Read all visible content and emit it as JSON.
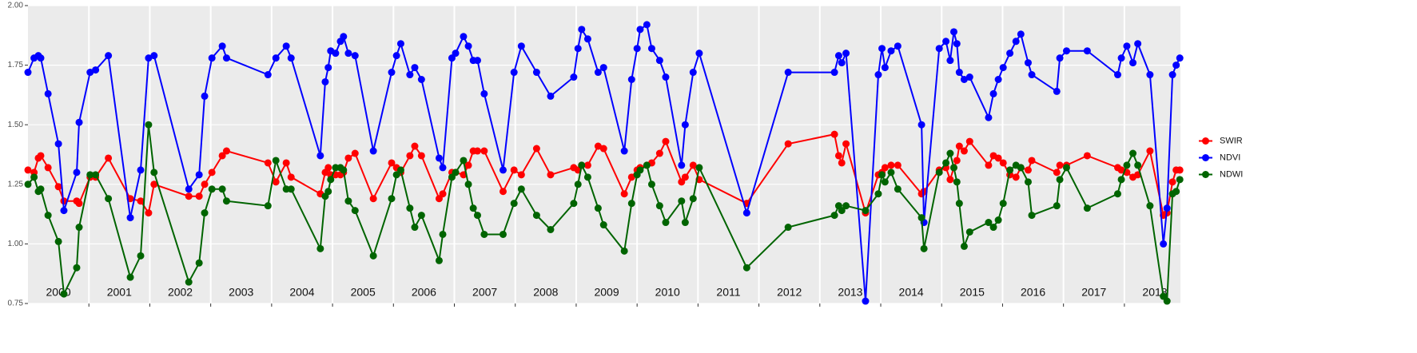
{
  "chart_data": {
    "type": "line",
    "x": [
      2000.0,
      2000.1,
      2000.17,
      2000.21,
      2000.33,
      2000.5,
      2000.59,
      2000.8,
      2000.84,
      2001.02,
      2001.11,
      2001.32,
      2001.68,
      2001.85,
      2001.98,
      2002.07,
      2002.64,
      2002.81,
      2002.9,
      2003.02,
      2003.19,
      2003.26,
      2003.94,
      2004.07,
      2004.24,
      2004.32,
      2004.8,
      2004.88,
      2004.93,
      2004.97,
      2005.05,
      2005.13,
      2005.18,
      2005.26,
      2005.37,
      2005.67,
      2005.97,
      2006.05,
      2006.12,
      2006.27,
      2006.35,
      2006.46,
      2006.75,
      2006.81,
      2006.96,
      2007.02,
      2007.15,
      2007.23,
      2007.31,
      2007.38,
      2007.49,
      2007.8,
      2007.98,
      2008.1,
      2008.35,
      2008.58,
      2008.96,
      2009.03,
      2009.09,
      2009.19,
      2009.36,
      2009.45,
      2009.79,
      2009.91,
      2010.0,
      2010.05,
      2010.16,
      2010.24,
      2010.37,
      2010.47,
      2010.73,
      2010.79,
      2010.92,
      2011.02,
      2011.8,
      2012.48,
      2013.24,
      2013.31,
      2013.36,
      2013.43,
      2013.75,
      2013.96,
      2014.02,
      2014.07,
      2014.17,
      2014.28,
      2014.67,
      2014.71,
      2014.96,
      2015.07,
      2015.14,
      2015.2,
      2015.25,
      2015.29,
      2015.37,
      2015.46,
      2015.77,
      2015.85,
      2015.93,
      2016.01,
      2016.12,
      2016.22,
      2016.3,
      2016.42,
      2016.48,
      2016.89,
      2016.94,
      2017.05,
      2017.39,
      2017.89,
      2017.95,
      2018.04,
      2018.14,
      2018.22,
      2018.42,
      2018.64,
      2018.7,
      2018.79,
      2018.85,
      2018.91
    ],
    "series": [
      {
        "name": "SWIR",
        "color": "#ff0000",
        "values": [
          1.31,
          1.3,
          1.36,
          1.37,
          1.32,
          1.24,
          1.18,
          1.18,
          1.17,
          1.28,
          1.28,
          1.36,
          1.19,
          1.18,
          1.13,
          1.25,
          1.2,
          1.2,
          1.25,
          1.3,
          1.37,
          1.39,
          1.34,
          1.26,
          1.34,
          1.28,
          1.21,
          1.3,
          1.32,
          1.29,
          1.29,
          1.29,
          1.3,
          1.36,
          1.38,
          1.19,
          1.34,
          1.32,
          1.3,
          1.37,
          1.41,
          1.37,
          1.19,
          1.21,
          1.3,
          1.3,
          1.29,
          1.33,
          1.39,
          1.39,
          1.39,
          1.22,
          1.31,
          1.29,
          1.4,
          1.29,
          1.32,
          1.31,
          1.33,
          1.33,
          1.41,
          1.4,
          1.21,
          1.28,
          1.31,
          1.32,
          1.33,
          1.34,
          1.38,
          1.43,
          1.26,
          1.28,
          1.33,
          1.27,
          1.17,
          1.42,
          1.46,
          1.37,
          1.34,
          1.42,
          1.13,
          1.29,
          1.3,
          1.32,
          1.33,
          1.33,
          1.21,
          1.22,
          1.31,
          1.32,
          1.27,
          1.32,
          1.35,
          1.41,
          1.39,
          1.43,
          1.33,
          1.37,
          1.36,
          1.34,
          1.29,
          1.28,
          1.32,
          1.31,
          1.35,
          1.3,
          1.33,
          1.33,
          1.37,
          1.32,
          1.31,
          1.3,
          1.28,
          1.29,
          1.39,
          1.12,
          1.13,
          1.26,
          1.31,
          1.31
        ]
      },
      {
        "name": "NDVI",
        "color": "#0000ff",
        "values": [
          1.72,
          1.78,
          1.79,
          1.78,
          1.63,
          1.42,
          1.14,
          1.3,
          1.51,
          1.72,
          1.73,
          1.79,
          1.11,
          1.31,
          1.78,
          1.79,
          1.23,
          1.29,
          1.62,
          1.78,
          1.83,
          1.78,
          1.71,
          1.78,
          1.83,
          1.78,
          1.37,
          1.68,
          1.74,
          1.81,
          1.8,
          1.85,
          1.87,
          1.8,
          1.79,
          1.39,
          1.72,
          1.79,
          1.84,
          1.71,
          1.74,
          1.69,
          1.36,
          1.32,
          1.78,
          1.8,
          1.87,
          1.83,
          1.77,
          1.77,
          1.63,
          1.31,
          1.72,
          1.83,
          1.72,
          1.62,
          1.7,
          1.82,
          1.9,
          1.86,
          1.72,
          1.74,
          1.39,
          1.69,
          1.82,
          1.9,
          1.92,
          1.82,
          1.77,
          1.7,
          1.33,
          1.5,
          1.72,
          1.8,
          1.13,
          1.72,
          1.72,
          1.79,
          1.76,
          1.8,
          0.76,
          1.71,
          1.82,
          1.74,
          1.81,
          1.83,
          1.5,
          1.09,
          1.82,
          1.85,
          1.77,
          1.89,
          1.84,
          1.72,
          1.69,
          1.7,
          1.53,
          1.63,
          1.69,
          1.74,
          1.8,
          1.85,
          1.88,
          1.76,
          1.71,
          1.64,
          1.78,
          1.81,
          1.81,
          1.71,
          1.78,
          1.83,
          1.76,
          1.84,
          1.71,
          1.0,
          1.15,
          1.71,
          1.75,
          1.78
        ]
      },
      {
        "name": "NDWI",
        "color": "#006400",
        "values": [
          1.25,
          1.28,
          1.22,
          1.23,
          1.12,
          1.01,
          0.79,
          0.9,
          1.07,
          1.29,
          1.29,
          1.19,
          0.86,
          0.95,
          1.5,
          1.3,
          0.84,
          0.92,
          1.13,
          1.23,
          1.23,
          1.18,
          1.16,
          1.35,
          1.23,
          1.23,
          0.98,
          1.2,
          1.22,
          1.27,
          1.32,
          1.32,
          1.31,
          1.18,
          1.14,
          0.95,
          1.19,
          1.29,
          1.31,
          1.15,
          1.07,
          1.12,
          0.93,
          1.04,
          1.28,
          1.3,
          1.35,
          1.25,
          1.15,
          1.12,
          1.04,
          1.04,
          1.17,
          1.23,
          1.12,
          1.06,
          1.17,
          1.25,
          1.33,
          1.28,
          1.15,
          1.08,
          0.97,
          1.17,
          1.29,
          1.31,
          1.33,
          1.25,
          1.16,
          1.09,
          1.18,
          1.09,
          1.19,
          1.32,
          0.9,
          1.07,
          1.12,
          1.16,
          1.14,
          1.16,
          1.14,
          1.21,
          1.29,
          1.26,
          1.3,
          1.23,
          1.11,
          0.98,
          1.3,
          1.34,
          1.38,
          1.32,
          1.26,
          1.17,
          0.99,
          1.05,
          1.09,
          1.07,
          1.1,
          1.17,
          1.31,
          1.33,
          1.32,
          1.26,
          1.12,
          1.16,
          1.27,
          1.32,
          1.15,
          1.21,
          1.27,
          1.33,
          1.38,
          1.33,
          1.16,
          0.78,
          0.76,
          1.21,
          1.22,
          1.27
        ]
      }
    ],
    "xlim": [
      2000,
      2018.92
    ],
    "xticks": [
      {
        "value": 2000.5,
        "label": "2000"
      },
      {
        "value": 2001.5,
        "label": "2001"
      },
      {
        "value": 2002.5,
        "label": "2002"
      },
      {
        "value": 2003.5,
        "label": "2003"
      },
      {
        "value": 2004.5,
        "label": "2004"
      },
      {
        "value": 2005.5,
        "label": "2005"
      },
      {
        "value": 2006.5,
        "label": "2006"
      },
      {
        "value": 2007.5,
        "label": "2007"
      },
      {
        "value": 2008.5,
        "label": "2008"
      },
      {
        "value": 2009.5,
        "label": "2009"
      },
      {
        "value": 2010.5,
        "label": "2010"
      },
      {
        "value": 2011.5,
        "label": "2011"
      },
      {
        "value": 2012.5,
        "label": "2012"
      },
      {
        "value": 2013.5,
        "label": "2013"
      },
      {
        "value": 2014.5,
        "label": "2014"
      },
      {
        "value": 2015.5,
        "label": "2015"
      },
      {
        "value": 2016.5,
        "label": "2016"
      },
      {
        "value": 2017.5,
        "label": "2017"
      },
      {
        "value": 2018.5,
        "label": "2018"
      }
    ],
    "xgrid": [
      2001,
      2002,
      2003,
      2004,
      2005,
      2006,
      2007,
      2008,
      2009,
      2010,
      2011,
      2012,
      2013,
      2014,
      2015,
      2016,
      2017,
      2018
    ],
    "ylim": [
      0.75,
      2
    ],
    "yticks": [
      {
        "value": 0.75,
        "label": "0.75"
      },
      {
        "value": 1,
        "label": "1.00"
      },
      {
        "value": 1.25,
        "label": "1.25"
      },
      {
        "value": 1.5,
        "label": "1.50"
      },
      {
        "value": 1.75,
        "label": "1.75"
      },
      {
        "value": 2,
        "label": "2.00"
      }
    ],
    "grid": true,
    "legend": "right"
  }
}
